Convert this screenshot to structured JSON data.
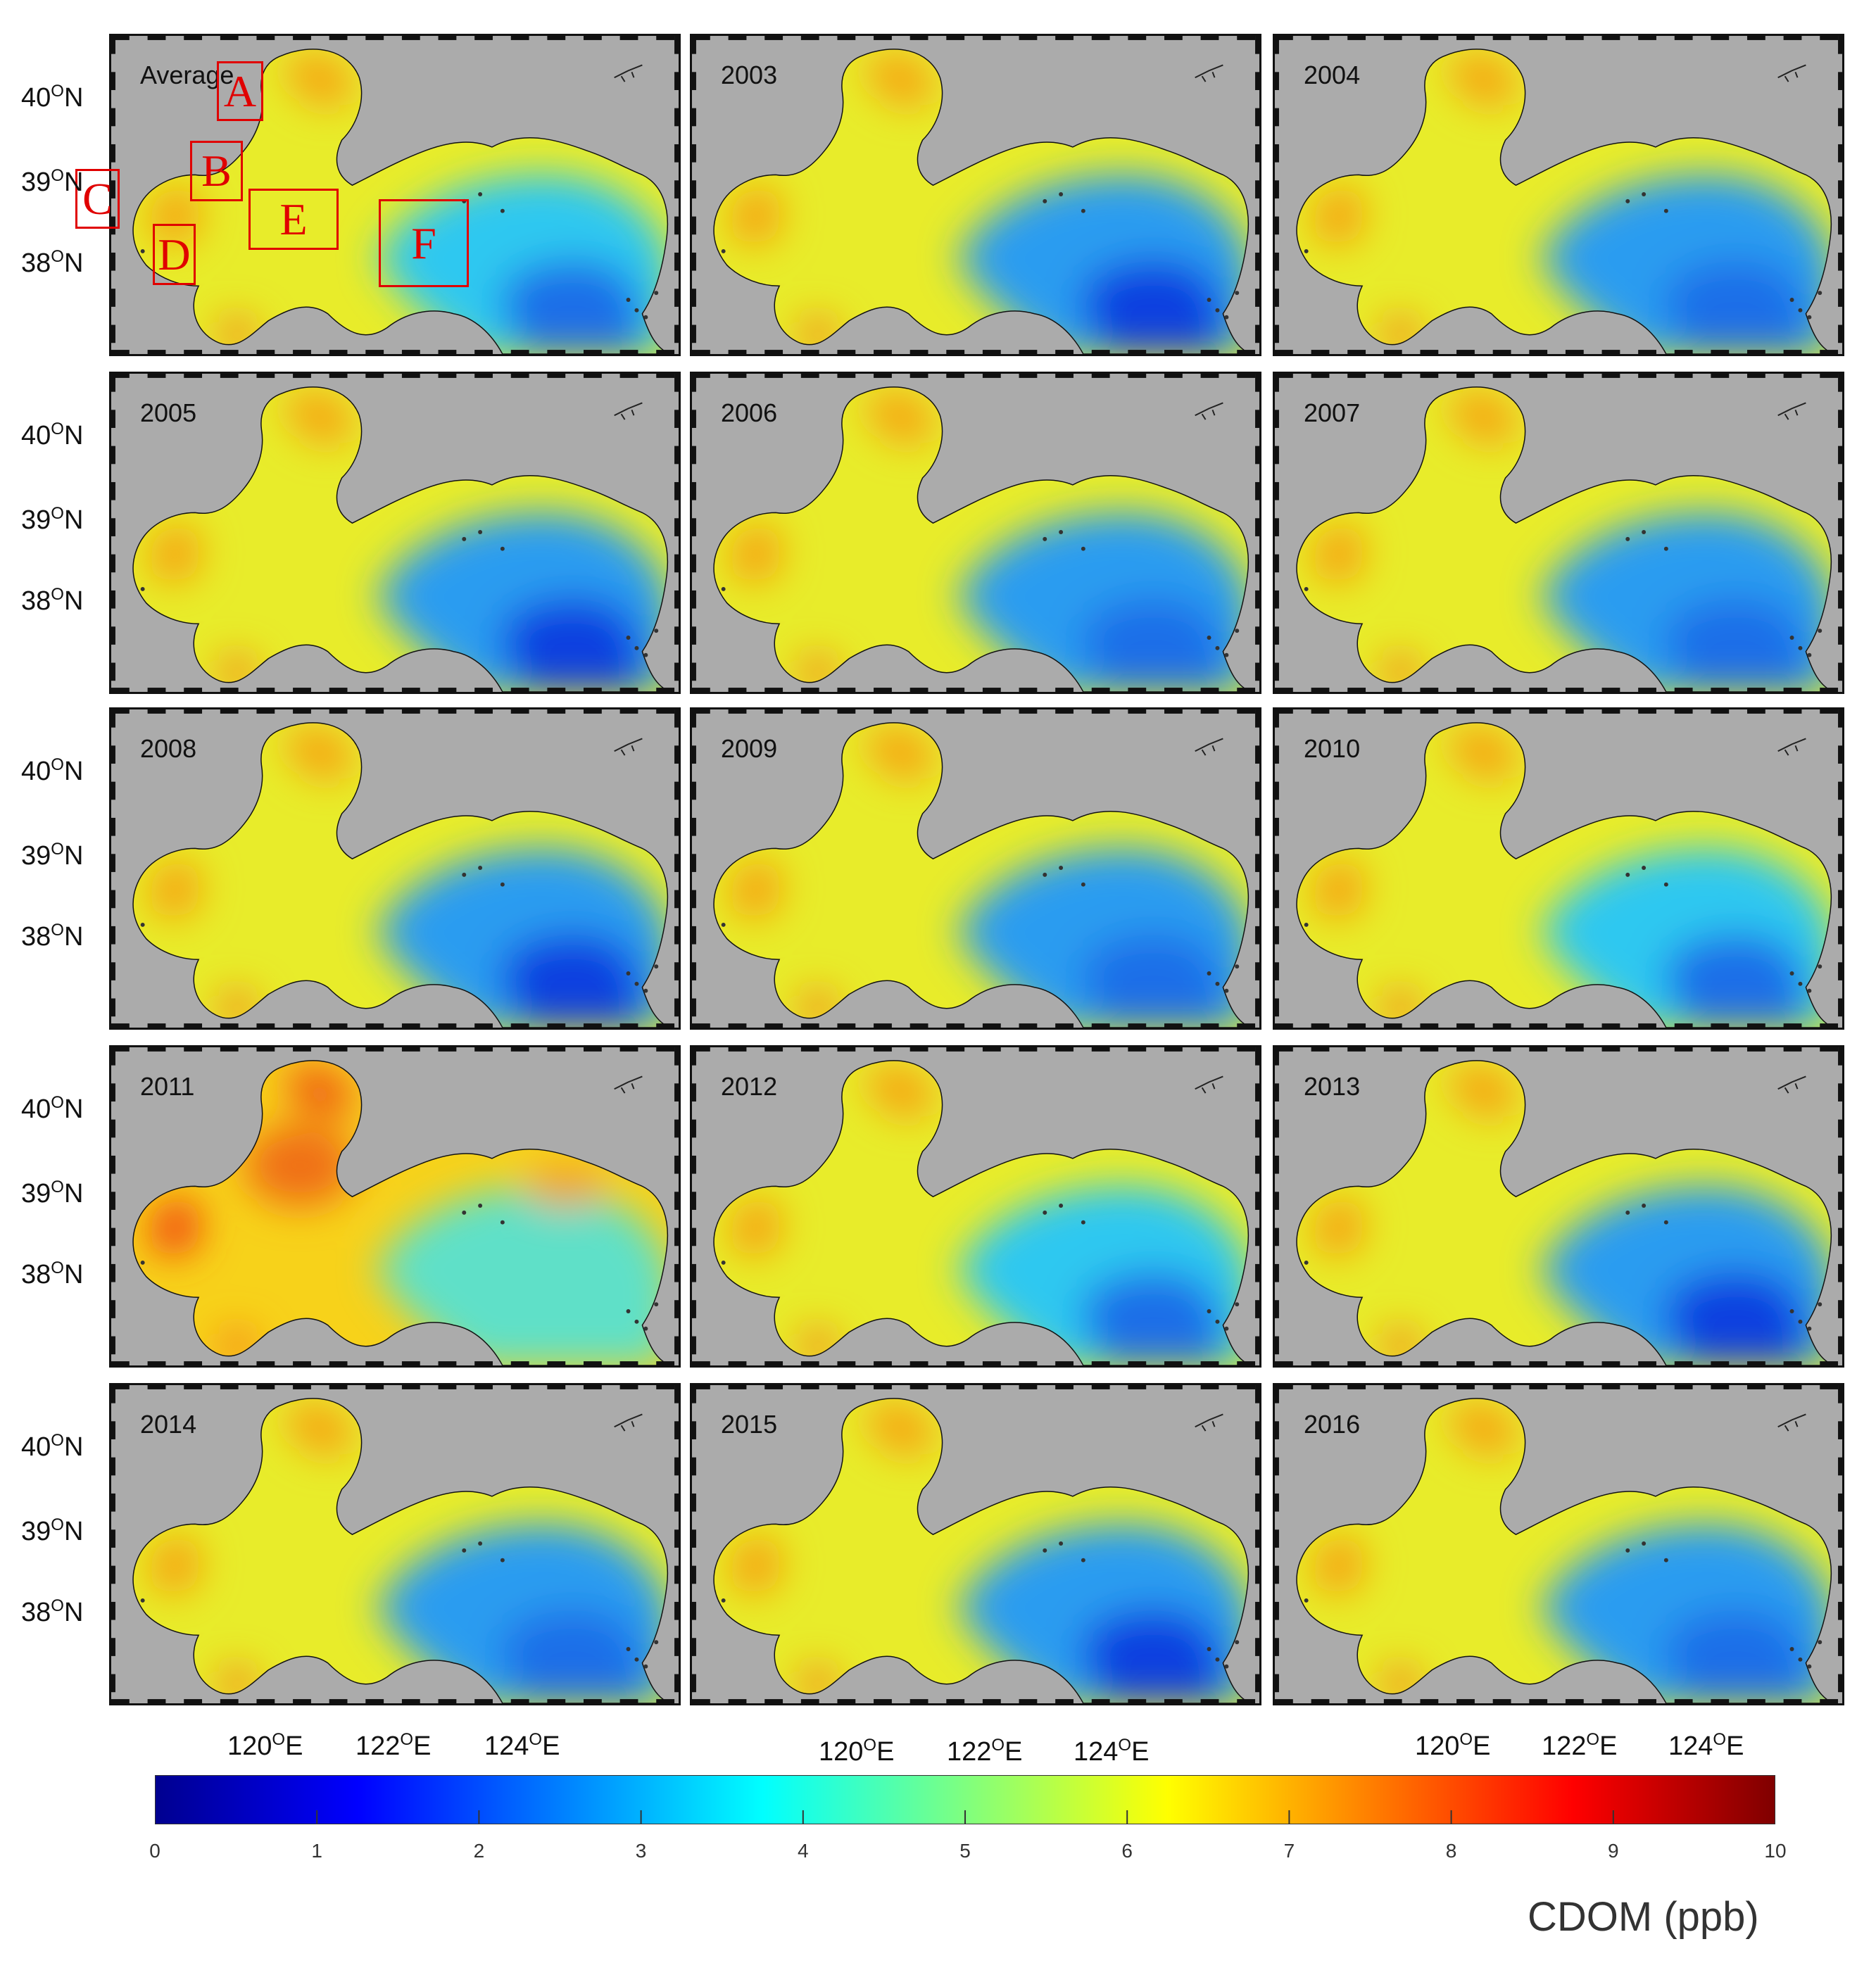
{
  "figure": {
    "panels": [
      {
        "label": "Average",
        "regions": [
          {
            "id": "A"
          },
          {
            "id": "B"
          },
          {
            "id": "C"
          },
          {
            "id": "D"
          },
          {
            "id": "E"
          },
          {
            "id": "F"
          }
        ]
      },
      {
        "label": "2003"
      },
      {
        "label": "2004"
      },
      {
        "label": "2005"
      },
      {
        "label": "2006"
      },
      {
        "label": "2007"
      },
      {
        "label": "2008"
      },
      {
        "label": "2009"
      },
      {
        "label": "2010"
      },
      {
        "label": "2011"
      },
      {
        "label": "2012"
      },
      {
        "label": "2013"
      },
      {
        "label": "2014"
      },
      {
        "label": "2015"
      },
      {
        "label": "2016"
      }
    ],
    "lat_labels": [
      "40",
      "39",
      "38"
    ],
    "lat_suffix": "N",
    "lon_labels": [
      "120",
      "122",
      "124"
    ],
    "lon_suffix": "E",
    "degree_symbol": "O",
    "colorbar": {
      "title": "CDOM (ppb)",
      "min": 0,
      "max": 10,
      "ticks": [
        "0",
        "1",
        "2",
        "3",
        "4",
        "5",
        "6",
        "7",
        "8",
        "9",
        "10"
      ],
      "colormap": "jet",
      "colors": [
        "#00008f",
        "#0000ff",
        "#007fff",
        "#00ffff",
        "#7fff7f",
        "#ffff00",
        "#ff7f00",
        "#ff0000",
        "#7f0000"
      ]
    },
    "land_color": "#ababab"
  }
}
